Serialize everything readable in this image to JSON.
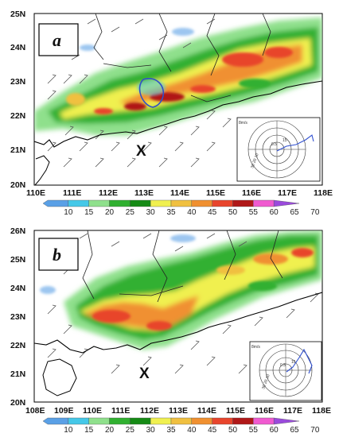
{
  "colors": {
    "palette": [
      "#5aa0e6",
      "#45c8e8",
      "#8fe08c",
      "#30b030",
      "#158a15",
      "#f0f050",
      "#f0c040",
      "#f09030",
      "#e8452c",
      "#b01818",
      "#f05ad0",
      "#9a4adc"
    ],
    "coast": "#000000",
    "boundary": "#222222"
  },
  "panels": [
    {
      "label": "a",
      "lon_ticks": [
        "110E",
        "111E",
        "112E",
        "113E",
        "114E",
        "115E",
        "116E",
        "117E",
        "118E"
      ],
      "lat_ticks": [
        "20N",
        "21N",
        "22N",
        "23N",
        "24N",
        "25N"
      ],
      "lon_range": [
        110,
        118
      ],
      "lat_range": [
        20,
        25
      ],
      "marker": {
        "symbol": "X",
        "lon": 113.0,
        "lat": 20.9
      },
      "colorbar_labels": [
        "10",
        "15",
        "20",
        "25",
        "30",
        "35",
        "40",
        "45",
        "50",
        "55",
        "60",
        "65",
        "70"
      ],
      "hodograph": {
        "labels": [
          "8m/s",
          "0.5",
          "15",
          "30 20 10"
        ]
      }
    },
    {
      "label": "b",
      "lon_ticks": [
        "108E",
        "109E",
        "110E",
        "111E",
        "112E",
        "113E",
        "114E",
        "115E",
        "116E",
        "117E",
        "118E"
      ],
      "lat_ticks": [
        "20N",
        "21N",
        "22N",
        "23N",
        "24N",
        "25N",
        "26N"
      ],
      "lon_range": [
        108,
        118
      ],
      "lat_range": [
        20,
        26
      ],
      "marker": {
        "symbol": "X",
        "lon": 112.0,
        "lat": 21.2
      },
      "colorbar_labels": [
        "10",
        "15",
        "20",
        "25",
        "30",
        "35",
        "40",
        "45",
        "50",
        "55",
        "60",
        "65",
        "70"
      ],
      "hodograph": {
        "labels": [
          "8m/s",
          "0.5",
          "15",
          "30 20 10"
        ]
      }
    }
  ]
}
